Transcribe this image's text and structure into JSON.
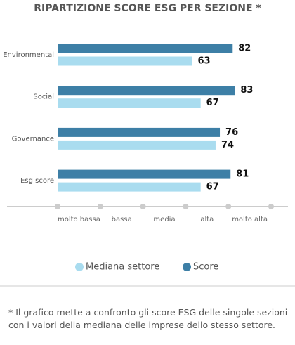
{
  "chart_data": {
    "type": "hbar",
    "title": "RIPARTIZIONE SCORE ESG PER SEZIONE *",
    "categories": [
      "Environmental",
      "Social",
      "Governance",
      "Esg score"
    ],
    "series": [
      {
        "name": "Score",
        "color": "#3d7fa6",
        "values": [
          82,
          83,
          76,
          81
        ]
      },
      {
        "name": "Mediana settore",
        "color": "#a9dcef",
        "values": [
          63,
          67,
          74,
          67
        ]
      }
    ],
    "xlim": [
      0,
      100
    ],
    "xtick_points": [
      0,
      20,
      40,
      60,
      80,
      100
    ],
    "xticks": [
      {
        "value": 10,
        "label": "molto bassa"
      },
      {
        "value": 30,
        "label": "bassa"
      },
      {
        "value": 50,
        "label": "media"
      },
      {
        "value": 70,
        "label": "alta"
      },
      {
        "value": 90,
        "label": "molto alta"
      }
    ],
    "note": "* Il grafico mette a confronto gli score ESG delle singole sezioni con i valori della mediana delle imprese dello stesso settore."
  }
}
